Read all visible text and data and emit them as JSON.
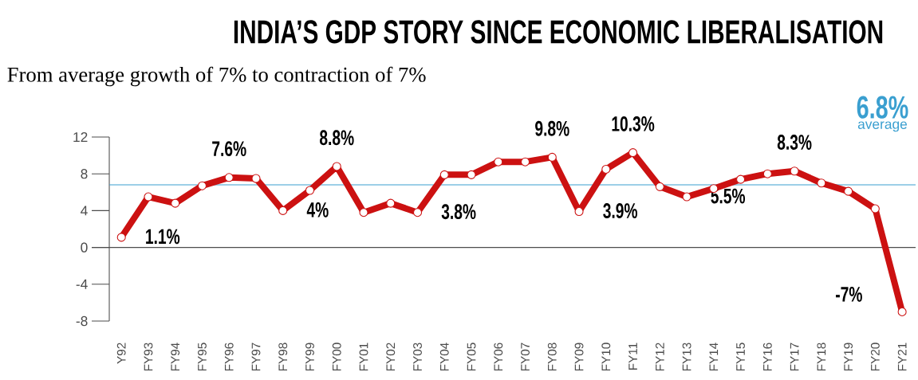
{
  "chart_data": {
    "type": "line",
    "title": "INDIA’S GDP STORY SINCE ECONOMIC LIBERALISATION",
    "subtitle": "From average growth of 7% to contraction of 7%",
    "categories": [
      "Y92",
      "FY93",
      "FY94",
      "FY95",
      "FY96",
      "FY97",
      "FY98",
      "FY99",
      "FY00",
      "FY01",
      "FY02",
      "FY03",
      "FY04",
      "FY05",
      "FY06",
      "FY07",
      "FY08",
      "FY09",
      "FY10",
      "FY11",
      "FY12",
      "FY13",
      "FY14",
      "FY15",
      "FY16",
      "FY17",
      "FY18",
      "FY19",
      "FY20",
      "FY21"
    ],
    "series": [
      {
        "color": "#cc1111",
        "values": [
          1.1,
          5.5,
          4.8,
          6.7,
          7.6,
          7.5,
          4.0,
          6.2,
          8.8,
          3.8,
          4.8,
          3.8,
          7.9,
          7.9,
          9.3,
          9.3,
          9.8,
          3.9,
          8.5,
          10.3,
          6.6,
          5.5,
          6.4,
          7.4,
          8.0,
          8.3,
          7.0,
          6.1,
          4.2,
          -7
        ],
        "value_labels": [
          "1.1%",
          null,
          null,
          null,
          "7.6%",
          null,
          "4%",
          null,
          "8.8%",
          null,
          null,
          "3.8%",
          null,
          null,
          null,
          null,
          "9.8%",
          "3.9%",
          null,
          "10.3%",
          null,
          "5.5%",
          null,
          null,
          null,
          "8.3%",
          null,
          null,
          null,
          "-7%"
        ]
      }
    ],
    "ylim": [
      -8,
      12
    ],
    "yticks": [
      -8,
      -4,
      0,
      4,
      8,
      12
    ],
    "marker": "circle",
    "line_style": "solid",
    "ref_lines": [
      {
        "axis": "y",
        "value": 6.8,
        "label": "6.8%",
        "color": "#3a9fd0"
      }
    ],
    "annotations": [
      "average"
    ]
  }
}
